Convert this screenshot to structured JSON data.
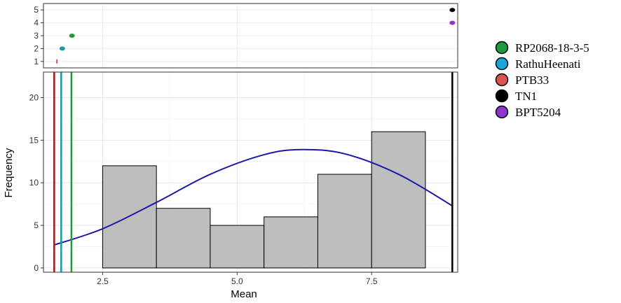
{
  "chart_data": {
    "type": "bar",
    "xlabel": "Mean",
    "ylabel": "Frequency",
    "xlim": [
      1.4,
      9.1
    ],
    "x_ticks": [
      "2.5",
      "5.0",
      "7.5"
    ],
    "x_tick_values": [
      2.5,
      5.0,
      7.5
    ],
    "histogram": {
      "ylim": [
        -0.5,
        23
      ],
      "y_ticks": [
        0,
        5,
        10,
        15,
        20
      ],
      "bins": [
        {
          "x_start": 2.5,
          "x_end": 3.5,
          "count": 12
        },
        {
          "x_start": 3.5,
          "x_end": 4.5,
          "count": 7
        },
        {
          "x_start": 4.5,
          "x_end": 5.5,
          "count": 5
        },
        {
          "x_start": 5.5,
          "x_end": 6.5,
          "count": 6
        },
        {
          "x_start": 6.5,
          "x_end": 7.5,
          "count": 11
        },
        {
          "x_start": 7.5,
          "x_end": 8.5,
          "count": 16
        }
      ],
      "bar_fill": "#bebebe",
      "density_curve": {
        "color": "#1a1aa6",
        "points": [
          [
            1.6,
            2.7
          ],
          [
            2.5,
            4.6
          ],
          [
            3.5,
            7.7
          ],
          [
            4.5,
            11.0
          ],
          [
            5.5,
            13.3
          ],
          [
            6.2,
            13.9
          ],
          [
            7.0,
            13.4
          ],
          [
            8.0,
            11.0
          ],
          [
            9.0,
            7.3
          ]
        ]
      },
      "reference_lines": [
        {
          "name": "PTB33",
          "x": 1.6,
          "color": "#9e1b1b"
        },
        {
          "name": "RathuHeenati",
          "x": 1.73,
          "color": "#1a9aa6"
        },
        {
          "name": "RP2068-18-3-5",
          "x": 1.92,
          "color": "#1e9a3c"
        },
        {
          "name": "TN1",
          "x": 9.0,
          "color": "#000000"
        }
      ]
    },
    "rank_panel": {
      "ylim": [
        0.5,
        5.5
      ],
      "y_ticks": [
        1,
        2,
        3,
        4,
        5
      ],
      "points": [
        {
          "name": "PTB33",
          "x": 1.65,
          "y": 1,
          "color": "#d9534f"
        },
        {
          "name": "RathuHeenati",
          "x": 1.75,
          "y": 2,
          "color": "#1a9aa6"
        },
        {
          "name": "RP2068-18-3-5",
          "x": 1.93,
          "y": 3,
          "color": "#1e9a3c"
        },
        {
          "name": "BPT5204",
          "x": 9.0,
          "y": 4,
          "color": "#8e35c9"
        },
        {
          "name": "TN1",
          "x": 9.0,
          "y": 5,
          "color": "#000000"
        }
      ]
    },
    "legend": {
      "position": "right",
      "items": [
        {
          "label": "RP2068-18-3-5",
          "color": "#1e9a3c"
        },
        {
          "label": "RathuHeenati",
          "color": "#1aa6d6"
        },
        {
          "label": "PTB33",
          "color": "#d9534f"
        },
        {
          "label": "TN1",
          "color": "#000000"
        },
        {
          "label": "BPT5204",
          "color": "#8e35c9"
        }
      ]
    },
    "grid": true
  }
}
